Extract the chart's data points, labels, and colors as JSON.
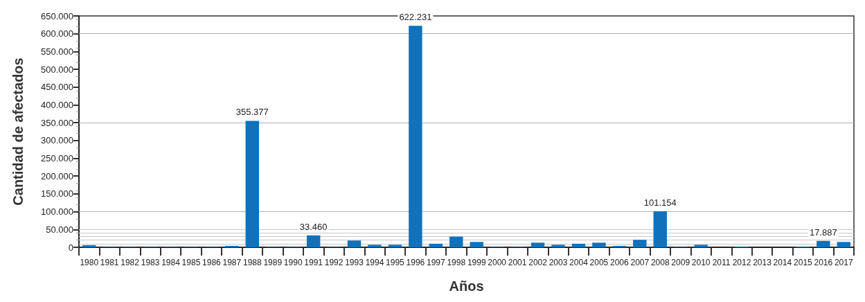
{
  "chart_data": {
    "type": "bar",
    "xlabel": "Años",
    "ylabel": "Cantidad de afectados",
    "categories": [
      "1980",
      "1981",
      "1982",
      "1983",
      "1984",
      "1985",
      "1986",
      "1987",
      "1988",
      "1989",
      "1990",
      "1991",
      "1992",
      "1993",
      "1994",
      "1995",
      "1996",
      "1997",
      "1998",
      "1999",
      "2000",
      "2001",
      "2002",
      "2003",
      "2004",
      "2005",
      "2006",
      "2007",
      "2008",
      "2009",
      "2010",
      "2011",
      "2012",
      "2013",
      "2014",
      "2015",
      "2016",
      "2017"
    ],
    "values": [
      6000,
      1000,
      1000,
      1000,
      1000,
      1000,
      1000,
      4000,
      355377,
      1000,
      1000,
      33460,
      1000,
      19000,
      7000,
      7000,
      622231,
      10000,
      30000,
      15000,
      1000,
      1000,
      13000,
      7000,
      10000,
      13000,
      4000,
      21000,
      101154,
      1000,
      7000,
      0,
      2000,
      0,
      0,
      2000,
      17887,
      15000
    ],
    "value_labels": [
      null,
      null,
      null,
      null,
      null,
      null,
      null,
      null,
      "355.377",
      null,
      null,
      "33.460",
      null,
      null,
      null,
      null,
      "622.231",
      null,
      null,
      null,
      null,
      null,
      null,
      null,
      null,
      null,
      null,
      null,
      "101.154",
      null,
      null,
      null,
      null,
      null,
      null,
      null,
      "17.887",
      null
    ],
    "color": "#1172bb",
    "ylim": [
      0,
      650000
    ],
    "yticks": [
      0,
      {
        "value": 50000,
        "label": "50.000"
      },
      {
        "value": 100000,
        "label": "100.000"
      },
      {
        "value": 150000,
        "label": "150.000"
      },
      {
        "value": 200000,
        "label": "200.000"
      },
      {
        "value": 250000,
        "label": "250.000"
      },
      {
        "value": 300000,
        "label": "300.000"
      },
      {
        "value": 350000,
        "label": "350.000"
      },
      {
        "value": 400000,
        "label": "400.000"
      },
      {
        "value": 450000,
        "label": "450.000"
      },
      {
        "value": 500000,
        "label": "500.000"
      },
      {
        "value": 550000,
        "label": "550.000"
      },
      {
        "value": 600000,
        "label": "600.000"
      },
      {
        "value": 650000,
        "label": "650.000"
      }
    ],
    "ref_lines": [
      {
        "axis": "y",
        "value": 10000,
        "color": "#c8c8c8"
      },
      {
        "axis": "y",
        "value": 20000,
        "color": "#c8c8c8"
      },
      {
        "axis": "y",
        "value": 30000,
        "color": "#c8c8c8"
      },
      {
        "axis": "y",
        "value": 40000,
        "color": "#c8c8c8"
      },
      {
        "axis": "y",
        "value": 50000,
        "color": "#c8c8c8"
      },
      {
        "axis": "y",
        "value": 100000,
        "color": "#b0b0b0"
      },
      {
        "axis": "y",
        "value": 350000,
        "color": "#b0b0b0"
      },
      {
        "axis": "y",
        "value": 600000,
        "color": "#b0b0b0"
      }
    ]
  }
}
